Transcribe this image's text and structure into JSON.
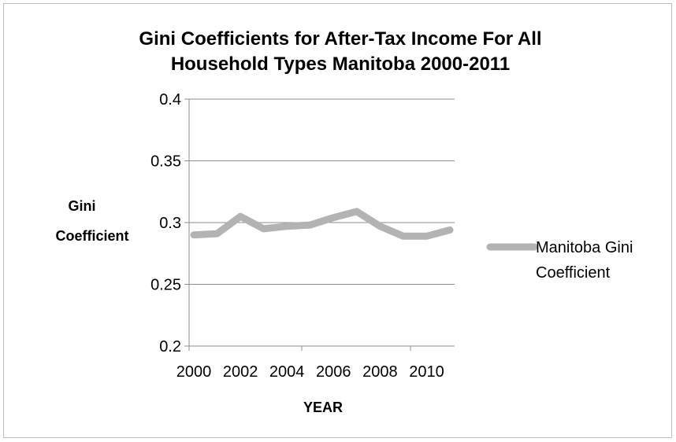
{
  "chart_data": {
    "type": "line",
    "title_lines": [
      "Gini Coefficients for After-Tax Income For All",
      "Household Types Manitoba 2000-2011"
    ],
    "ylabel_lines": [
      "Gini",
      "Coefficient"
    ],
    "xlabel": "YEAR",
    "ylim": [
      0.2,
      0.4
    ],
    "yticks": [
      "0.2",
      "0.25",
      "0.3",
      "0.35",
      "0.4"
    ],
    "ytick_values": [
      0.2,
      0.25,
      0.3,
      0.35,
      0.4
    ],
    "xlim": [
      2000,
      2011
    ],
    "xtick_labels": [
      "2000",
      "2002",
      "2004",
      "2006",
      "2008",
      "2010"
    ],
    "xtick_values": [
      2000,
      2002,
      2004,
      2006,
      2008,
      2010
    ],
    "grid": true,
    "legend_position": "right",
    "series": [
      {
        "name_lines": [
          "Manitoba Gini",
          "Coefficient"
        ],
        "color": "#b3b3b3",
        "x": [
          2000,
          2001,
          2002,
          2003,
          2004,
          2005,
          2006,
          2007,
          2008,
          2009,
          2010,
          2011
        ],
        "values": [
          0.29,
          0.291,
          0.305,
          0.295,
          0.297,
          0.298,
          0.304,
          0.309,
          0.297,
          0.289,
          0.289,
          0.294
        ]
      }
    ]
  }
}
